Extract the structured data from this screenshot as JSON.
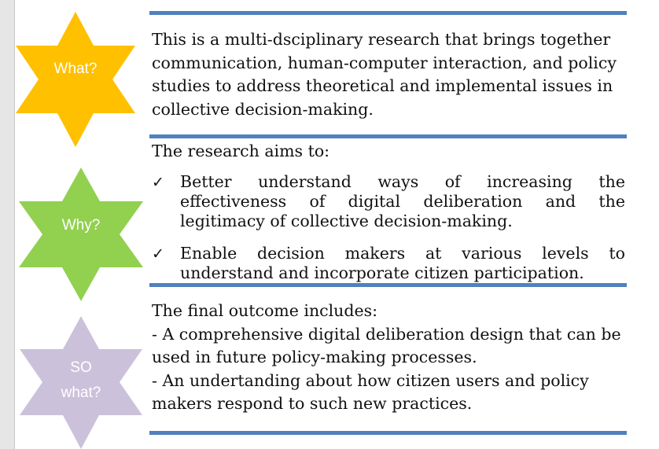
{
  "stars": [
    {
      "label_lines": [
        "What?"
      ],
      "color": "#ffc000"
    },
    {
      "label_lines": [
        "Why?"
      ],
      "color": "#92d050"
    },
    {
      "label_lines": [
        "SO",
        "what?"
      ],
      "color": "#ccc1da"
    }
  ],
  "sections": {
    "what": {
      "text": "This is a multi-dsciplinary research that brings together communication, human-computer interaction, and policy studies to address theoretical and implemental issues in collective decision-making."
    },
    "why": {
      "heading": "The research aims to:",
      "bullet_symbol": "✓",
      "bullets": [
        "Better understand ways of  increasing the effectiveness of digital deliberation and the legitimacy of collective decision-making.",
        "Enable decision makers at various levels to understand and incorporate citizen participation."
      ]
    },
    "so_what": {
      "heading": "The final outcome includes:",
      "items": [
        "- A comprehensive digital deliberation design that can be used in future policy-making processes.",
        "- An undertanding about how citizen users and policy makers respond to such new practices."
      ]
    }
  },
  "colors": {
    "rule": "#4f81bd",
    "text": "#111111"
  }
}
